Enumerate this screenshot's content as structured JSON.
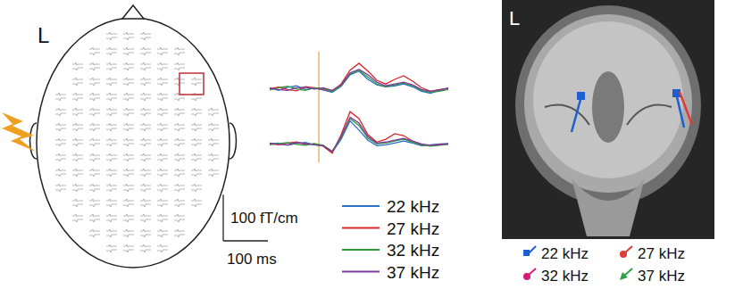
{
  "head": {
    "label": "L"
  },
  "chart_data": [
    {
      "type": "line",
      "x": [
        -110,
        -90,
        -70,
        -50,
        -30,
        -10,
        10,
        30,
        50,
        70,
        90,
        110,
        130,
        150,
        170,
        190,
        210,
        230,
        250,
        270,
        290
      ],
      "xlim": [
        -110,
        290
      ],
      "ylim": [
        -40,
        80
      ],
      "tick_labels": false,
      "vline": 0,
      "legend": "bottom",
      "series": [
        {
          "name": "22 kHz",
          "color": "#2a6fc9",
          "values": [
            2,
            -4,
            3,
            6,
            -2,
            1,
            -3,
            -8,
            5,
            30,
            38,
            20,
            8,
            4,
            6,
            10,
            4,
            -6,
            -10,
            -4,
            2
          ]
        },
        {
          "name": "27 kHz",
          "color": "#d8262b",
          "values": [
            0,
            3,
            -2,
            -5,
            4,
            2,
            -2,
            -5,
            10,
            40,
            55,
            38,
            18,
            10,
            20,
            28,
            16,
            2,
            -6,
            -2,
            0
          ]
        },
        {
          "name": "32 kHz",
          "color": "#2f9a40",
          "values": [
            -3,
            2,
            5,
            -1,
            -4,
            2,
            0,
            -6,
            6,
            32,
            40,
            25,
            10,
            4,
            8,
            12,
            6,
            -4,
            -8,
            -6,
            -2
          ]
        },
        {
          "name": "37 kHz",
          "color": "#7d3c98",
          "values": [
            1,
            -2,
            -4,
            2,
            3,
            -1,
            2,
            -4,
            8,
            34,
            42,
            30,
            14,
            6,
            10,
            14,
            8,
            -2,
            -6,
            -3,
            1
          ]
        }
      ]
    },
    {
      "type": "line",
      "x": [
        -110,
        -90,
        -70,
        -50,
        -30,
        -10,
        10,
        30,
        50,
        70,
        90,
        110,
        130,
        150,
        170,
        190,
        210,
        230,
        250,
        270,
        290
      ],
      "xlim": [
        -110,
        290
      ],
      "ylim": [
        -40,
        80
      ],
      "tick_labels": false,
      "vline": 0,
      "series": [
        {
          "name": "22 kHz",
          "color": "#2a6fc9",
          "values": [
            0,
            2,
            -3,
            1,
            3,
            -2,
            -4,
            -18,
            10,
            50,
            30,
            8,
            -4,
            -2,
            2,
            6,
            2,
            -4,
            -2,
            0,
            1
          ]
        },
        {
          "name": "27 kHz",
          "color": "#d8262b",
          "values": [
            1,
            -2,
            2,
            4,
            -1,
            0,
            -5,
            -20,
            20,
            70,
            55,
            20,
            4,
            10,
            22,
            18,
            6,
            -2,
            -4,
            -1,
            0
          ]
        },
        {
          "name": "32 kHz",
          "color": "#2f9a40",
          "values": [
            -2,
            1,
            3,
            -1,
            -3,
            1,
            -3,
            -16,
            14,
            55,
            40,
            12,
            0,
            2,
            6,
            10,
            4,
            -2,
            -5,
            -3,
            -1
          ]
        },
        {
          "name": "37 kHz",
          "color": "#7d3c98",
          "values": [
            2,
            -1,
            -2,
            3,
            1,
            -2,
            -4,
            -17,
            16,
            58,
            45,
            16,
            2,
            4,
            8,
            12,
            6,
            0,
            -3,
            -2,
            0
          ]
        }
      ]
    }
  ],
  "scale_bars": {
    "amplitude": {
      "value": 100,
      "label": "100 fT/cm"
    },
    "time": {
      "value": 100,
      "label": "100 ms"
    }
  },
  "mri": {
    "label": "L",
    "legend": [
      {
        "label": "22 kHz",
        "color": "#1d5fd0",
        "marker": "square"
      },
      {
        "label": "27 kHz",
        "color": "#e23a36",
        "marker": "dot"
      },
      {
        "label": "32 kHz",
        "color": "#d81b7a",
        "marker": "dot"
      },
      {
        "label": "37 kHz",
        "color": "#2aa24a",
        "marker": "arrow"
      }
    ]
  }
}
